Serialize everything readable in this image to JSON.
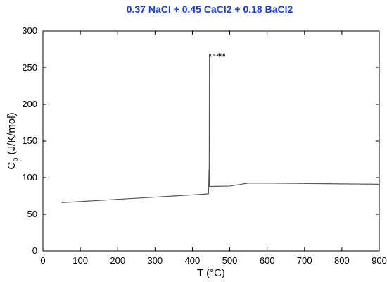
{
  "chart_data": {
    "type": "line",
    "title": "0.37 NaCl  +  0.45 CaCl2  +  0.18 BaCl2",
    "xlabel": "T (°C)",
    "ylabel_main": "C",
    "ylabel_sub": "p",
    "ylabel_rest": " (J/K/mol)",
    "xlim": [
      0,
      900
    ],
    "ylim": [
      0,
      300
    ],
    "x_ticks": [
      0,
      100,
      200,
      300,
      400,
      500,
      600,
      700,
      800,
      900
    ],
    "y_ticks": [
      0,
      50,
      100,
      150,
      200,
      250,
      300
    ],
    "grid": false,
    "series": [
      {
        "color": "#555555",
        "points": [
          [
            50,
            66
          ],
          [
            100,
            67.5
          ],
          [
            200,
            70.5
          ],
          [
            300,
            73.5
          ],
          [
            400,
            76.5
          ],
          [
            443,
            78
          ],
          [
            443.5,
            85
          ],
          [
            444.5,
            111
          ],
          [
            445,
            88
          ],
          [
            445.6,
            268
          ],
          [
            446.2,
            88
          ],
          [
            450,
            88
          ],
          [
            500,
            88.5
          ],
          [
            550,
            92.5
          ],
          [
            600,
            92.5
          ],
          [
            700,
            92
          ],
          [
            800,
            91.5
          ],
          [
            900,
            91
          ]
        ]
      }
    ],
    "annotations": [
      {
        "text": "x = 446",
        "x": 446,
        "y": 268
      }
    ]
  }
}
